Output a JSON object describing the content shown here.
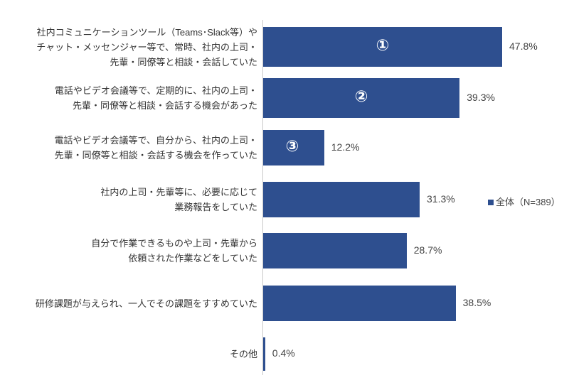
{
  "chart_data": {
    "type": "bar",
    "orientation": "horizontal",
    "categories": [
      "社内コミュニケーションツール（Teams･Slack等）や\nチャット・メッセンジャー等で、常時、社内の上司・\n先輩・同僚等と相談・会話していた",
      "電話やビデオ会議等で、定期的に、社内の上司・\n先輩・同僚等と相談・会話する機会があった",
      "電話やビデオ会議等で、自分から、社内の上司・\n先輩・同僚等と相談・会話する機会を作っていた",
      "社内の上司・先輩等に、必要に応じて\n業務報告をしていた",
      "自分で作業できるものや上司・先輩から\n依頼された作業などをしていた",
      "研修課題が与えられ、一人でその課題をすすめていた",
      "その他"
    ],
    "series": [
      {
        "name": "全体（N=389）",
        "values": [
          47.8,
          39.3,
          12.2,
          31.3,
          28.7,
          38.5,
          0.4
        ]
      }
    ],
    "value_labels": [
      "47.8%",
      "39.3%",
      "12.2%",
      "31.3%",
      "28.7%",
      "38.5%",
      "0.4%"
    ],
    "rank_badges": [
      "①",
      "②",
      "③"
    ],
    "legend": "全体（N=389）",
    "legend_position": "right",
    "color": "#2e4f8f",
    "xlim": [
      0,
      60
    ]
  }
}
